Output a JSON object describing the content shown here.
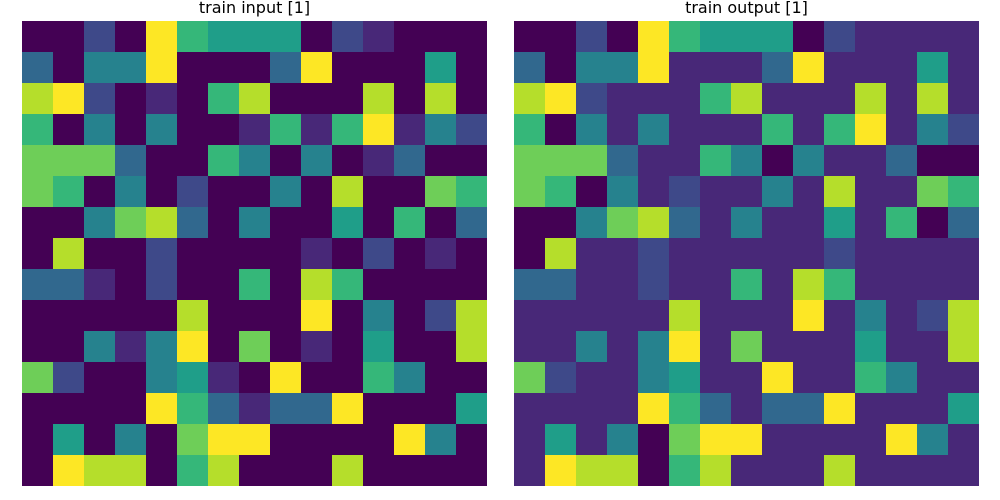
{
  "palette": [
    "#440154",
    "#482878",
    "#3e4989",
    "#31688e",
    "#26828e",
    "#1f9e89",
    "#35b779",
    "#6ece58",
    "#b5de2b",
    "#fde725"
  ],
  "panels": [
    {
      "title": "train input [1]",
      "grid": [
        [
          0,
          0,
          2,
          0,
          9,
          6,
          5,
          5,
          5,
          0,
          2,
          1,
          0,
          0,
          0
        ],
        [
          3,
          0,
          4,
          4,
          9,
          0,
          0,
          0,
          3,
          9,
          0,
          0,
          0,
          5,
          0
        ],
        [
          8,
          9,
          2,
          0,
          1,
          0,
          6,
          8,
          0,
          0,
          0,
          8,
          0,
          8,
          0
        ],
        [
          6,
          0,
          4,
          0,
          4,
          0,
          0,
          1,
          6,
          1,
          6,
          9,
          1,
          4,
          2
        ],
        [
          7,
          7,
          7,
          3,
          0,
          0,
          6,
          4,
          0,
          4,
          0,
          1,
          3,
          0,
          0
        ],
        [
          7,
          6,
          0,
          4,
          0,
          2,
          0,
          0,
          4,
          0,
          8,
          0,
          0,
          7,
          6
        ],
        [
          0,
          0,
          4,
          7,
          8,
          3,
          0,
          4,
          0,
          0,
          5,
          0,
          6,
          0,
          3
        ],
        [
          0,
          8,
          0,
          0,
          2,
          0,
          0,
          0,
          0,
          1,
          0,
          2,
          0,
          1,
          0
        ],
        [
          3,
          3,
          1,
          0,
          2,
          0,
          0,
          6,
          0,
          8,
          6,
          0,
          0,
          0,
          0
        ],
        [
          0,
          0,
          0,
          0,
          0,
          8,
          0,
          0,
          0,
          9,
          0,
          4,
          0,
          2,
          8
        ],
        [
          0,
          0,
          4,
          1,
          4,
          9,
          0,
          7,
          0,
          1,
          0,
          5,
          0,
          0,
          8
        ],
        [
          7,
          2,
          0,
          0,
          4,
          5,
          1,
          0,
          9,
          0,
          0,
          6,
          4,
          0,
          0
        ],
        [
          0,
          0,
          0,
          0,
          9,
          6,
          3,
          1,
          3,
          3,
          9,
          0,
          0,
          0,
          5
        ],
        [
          0,
          5,
          0,
          4,
          0,
          7,
          9,
          9,
          0,
          0,
          0,
          0,
          9,
          4,
          0
        ],
        [
          0,
          9,
          8,
          8,
          0,
          6,
          8,
          0,
          0,
          0,
          8,
          0,
          0,
          0,
          0
        ]
      ]
    },
    {
      "title": "train output [1]",
      "grid": [
        [
          0,
          0,
          2,
          0,
          9,
          6,
          5,
          5,
          5,
          0,
          2,
          1,
          1,
          1,
          1
        ],
        [
          3,
          0,
          4,
          4,
          9,
          1,
          1,
          1,
          3,
          9,
          1,
          1,
          1,
          5,
          1
        ],
        [
          8,
          9,
          2,
          1,
          1,
          1,
          6,
          8,
          1,
          1,
          1,
          8,
          1,
          8,
          1
        ],
        [
          6,
          0,
          4,
          1,
          4,
          1,
          1,
          1,
          6,
          1,
          6,
          9,
          1,
          4,
          2
        ],
        [
          7,
          7,
          7,
          3,
          1,
          1,
          6,
          4,
          0,
          4,
          1,
          1,
          3,
          0,
          0
        ],
        [
          7,
          6,
          0,
          4,
          1,
          2,
          1,
          1,
          4,
          1,
          8,
          1,
          1,
          7,
          6
        ],
        [
          0,
          0,
          4,
          7,
          8,
          3,
          1,
          4,
          1,
          1,
          5,
          1,
          6,
          0,
          3
        ],
        [
          0,
          8,
          1,
          1,
          2,
          1,
          1,
          1,
          1,
          1,
          2,
          1,
          1,
          1,
          1
        ],
        [
          3,
          3,
          1,
          1,
          2,
          1,
          1,
          6,
          1,
          8,
          6,
          1,
          1,
          1,
          1
        ],
        [
          1,
          1,
          1,
          1,
          1,
          8,
          1,
          1,
          1,
          9,
          1,
          4,
          1,
          2,
          8
        ],
        [
          1,
          1,
          4,
          1,
          4,
          9,
          1,
          7,
          1,
          1,
          1,
          5,
          1,
          1,
          8
        ],
        [
          7,
          2,
          1,
          1,
          4,
          5,
          1,
          1,
          9,
          1,
          1,
          6,
          4,
          1,
          1
        ],
        [
          1,
          1,
          1,
          1,
          9,
          6,
          3,
          1,
          3,
          3,
          9,
          1,
          1,
          1,
          5
        ],
        [
          1,
          5,
          1,
          4,
          0,
          7,
          9,
          9,
          1,
          1,
          1,
          1,
          9,
          4,
          1
        ],
        [
          1,
          9,
          8,
          8,
          0,
          6,
          8,
          1,
          1,
          1,
          8,
          1,
          1,
          1,
          1
        ]
      ]
    }
  ]
}
